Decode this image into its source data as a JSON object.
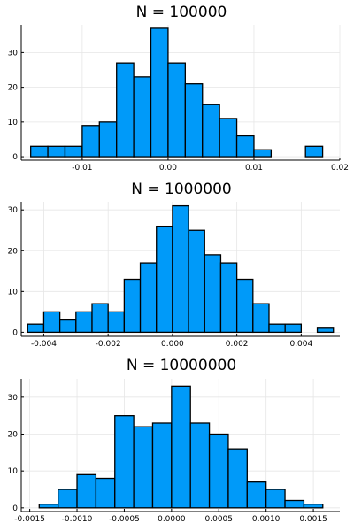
{
  "figure": {
    "bar_color": "#009AF9",
    "bar_edge_color": "#000000",
    "background": "#FFFFFF",
    "grid_color": "#E6E6E6"
  },
  "chart_data": [
    {
      "type": "bar",
      "title": "N = 100000",
      "xlabel": "",
      "ylabel": "",
      "grid": true,
      "legend": "none",
      "xlim": [
        -0.0171,
        0.02
      ],
      "ylim": [
        -1,
        38
      ],
      "x_ticks": [
        -0.01,
        0.0,
        0.01,
        0.02
      ],
      "x_tick_labels": [
        "-0.01",
        "0.00",
        "0.01",
        "0.02"
      ],
      "y_ticks": [
        0,
        10,
        20,
        30
      ],
      "y_tick_labels": [
        "0",
        "10",
        "20",
        "30"
      ],
      "bin_edges": [
        -0.016,
        -0.014,
        -0.012,
        -0.01,
        -0.008,
        -0.006,
        -0.004,
        -0.002,
        0.0,
        0.002,
        0.004,
        0.006,
        0.008,
        0.01,
        0.012,
        0.014,
        0.016,
        0.018
      ],
      "counts": [
        3,
        3,
        3,
        9,
        10,
        27,
        23,
        37,
        27,
        21,
        15,
        11,
        6,
        2,
        0,
        0,
        3
      ]
    },
    {
      "type": "bar",
      "title": "N = 1000000",
      "xlabel": "",
      "ylabel": "",
      "grid": true,
      "legend": "none",
      "xlim": [
        -0.0047,
        0.0052
      ],
      "ylim": [
        -1,
        32
      ],
      "x_ticks": [
        -0.004,
        -0.002,
        0.0,
        0.002,
        0.004
      ],
      "x_tick_labels": [
        "-0.004",
        "-0.002",
        "0.000",
        "0.002",
        "0.004"
      ],
      "y_ticks": [
        0,
        10,
        20,
        30
      ],
      "y_tick_labels": [
        "0",
        "10",
        "20",
        "30"
      ],
      "bin_edges": [
        -0.0045,
        -0.004,
        -0.0035,
        -0.003,
        -0.0025,
        -0.002,
        -0.0015,
        -0.001,
        -0.0005,
        0.0,
        0.0005,
        0.001,
        0.0015,
        0.002,
        0.0025,
        0.003,
        0.0035,
        0.004,
        0.0045,
        0.005
      ],
      "counts": [
        2,
        5,
        3,
        5,
        7,
        5,
        13,
        17,
        26,
        31,
        25,
        19,
        17,
        13,
        7,
        2,
        2,
        0,
        1
      ]
    },
    {
      "type": "bar",
      "title": "N = 10000000",
      "xlabel": "",
      "ylabel": "",
      "grid": true,
      "legend": "none",
      "xlim": [
        -0.00159,
        0.00178
      ],
      "ylim": [
        -1,
        35
      ],
      "x_ticks": [
        -0.0015,
        -0.001,
        -0.0005,
        0.0,
        0.0005,
        0.001,
        0.0015
      ],
      "x_tick_labels": [
        "-0.0015",
        "-0.0010",
        "-0.0005",
        "0.0000",
        "0.0005",
        "0.0010",
        "0.0015"
      ],
      "y_ticks": [
        0,
        10,
        20,
        30
      ],
      "y_tick_labels": [
        "0",
        "10",
        "20",
        "30"
      ],
      "bin_edges": [
        -0.0014,
        -0.0012,
        -0.001,
        -0.0008,
        -0.0006,
        -0.0004,
        -0.0002,
        0.0,
        0.0002,
        0.0004,
        0.0006,
        0.0008,
        0.001,
        0.0012,
        0.0014,
        0.0016
      ],
      "counts": [
        1,
        5,
        9,
        8,
        25,
        22,
        23,
        33,
        23,
        20,
        16,
        7,
        5,
        2,
        1
      ]
    }
  ]
}
